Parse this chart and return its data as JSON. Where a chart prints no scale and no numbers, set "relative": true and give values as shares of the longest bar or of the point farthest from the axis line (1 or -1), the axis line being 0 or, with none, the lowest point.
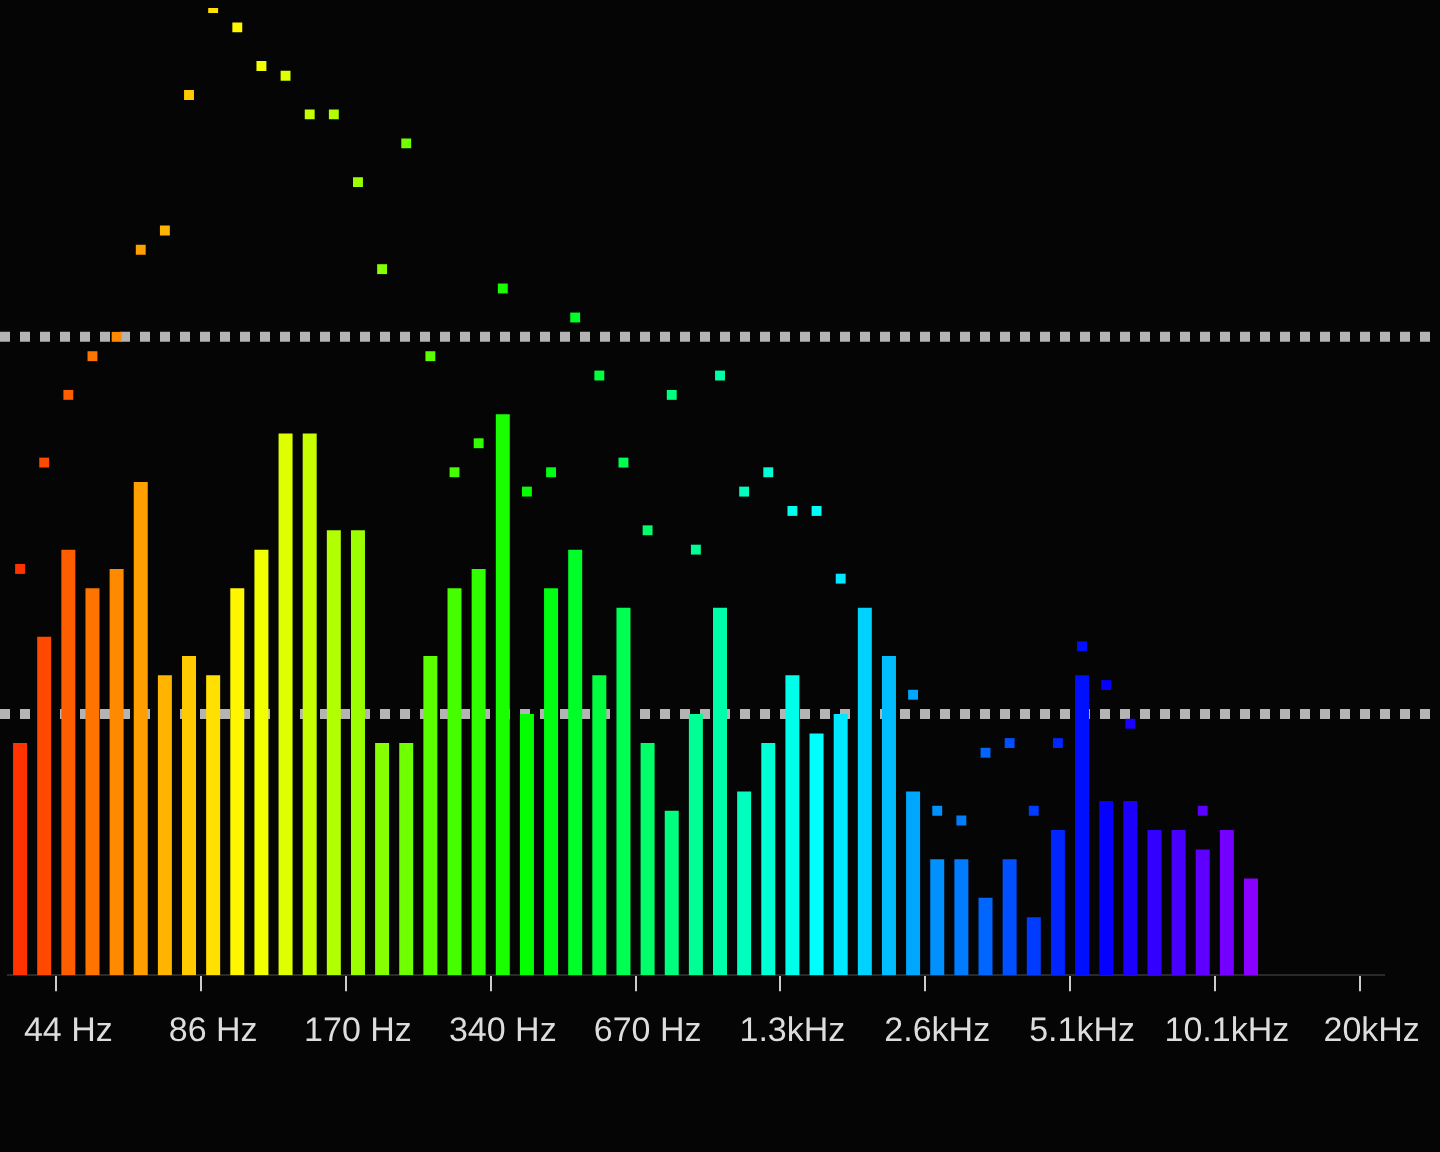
{
  "chart_data": {
    "type": "bar",
    "relative": true,
    "marker": "square",
    "categories": [
      null,
      null,
      "44 Hz",
      null,
      null,
      null,
      null,
      null,
      "86 Hz",
      null,
      null,
      null,
      null,
      null,
      "170 Hz",
      null,
      null,
      null,
      null,
      null,
      "340 Hz",
      null,
      null,
      null,
      null,
      null,
      "670 Hz",
      null,
      null,
      null,
      null,
      null,
      "1.3kHz",
      null,
      null,
      null,
      null,
      null,
      "2.6kHz",
      null,
      null,
      null,
      null,
      null,
      "5.1kHz",
      null,
      null,
      null,
      null,
      null,
      "10.1kHz",
      null,
      null,
      null,
      null,
      null,
      "20kHz"
    ],
    "series": [
      {
        "colors": [
          "#ff3300",
          "#ff4900",
          "#ff5e00",
          "#ff7400",
          "#ff8a00",
          "#ff9f00",
          "#ffb500",
          "#ffcb00",
          "#ffe000",
          "#fff600",
          "#f2ff00",
          "#ddff00",
          "#c7ff00",
          "#b1ff00",
          "#9cff00",
          "#86ff00",
          "#70ff00",
          "#5bff00",
          "#45ff00",
          "#2fff00",
          "#1aff00",
          "#04ff00",
          "#00ff12",
          "#00ff28",
          "#00ff3d",
          "#00ff53",
          "#00ff69",
          "#00ff7e",
          "#00ff94",
          "#00ffaa",
          "#00ffbf",
          "#00ffd5",
          "#00ffeb",
          "#00feff",
          "#00e8ff",
          "#00d2ff",
          "#00bdff",
          "#00a7ff",
          "#0091ff",
          "#007cff",
          "#0066ff",
          "#0050ff",
          "#003bff",
          "#0025ff",
          "#000fff",
          "#0600ff",
          "#1c00ff",
          "#3200ff",
          "#4700ff",
          "#5d00ff",
          "#7300ff",
          "#8800ff",
          null,
          null,
          null,
          null,
          null
        ],
        "values": [
          0.24,
          0.35,
          0.44,
          0.4,
          0.42,
          0.51,
          0.31,
          0.33,
          0.31,
          0.4,
          0.44,
          0.56,
          0.56,
          0.46,
          0.46,
          0.24,
          0.24,
          0.33,
          0.4,
          0.42,
          0.58,
          0.27,
          0.4,
          0.44,
          0.31,
          0.38,
          0.24,
          0.17,
          0.27,
          0.38,
          0.19,
          0.24,
          0.31,
          0.25,
          0.27,
          0.38,
          0.33,
          0.19,
          0.12,
          0.12,
          0.08,
          0.12,
          0.06,
          0.15,
          0.31,
          0.18,
          0.18,
          0.15,
          0.15,
          0.13,
          0.15,
          0.1,
          null,
          null,
          null,
          null,
          null
        ]
      },
      {
        "type": "scatter",
        "colors": [
          "#ff3300",
          "#ff4900",
          "#ff5e00",
          "#ff7400",
          "#ff8a00",
          "#ff9f00",
          "#ffb500",
          "#ffcb00",
          "#ffe000",
          "#fff600",
          "#f2ff00",
          "#ddff00",
          "#c7ff00",
          "#b1ff00",
          "#9cff00",
          "#86ff00",
          "#70ff00",
          "#5bff00",
          "#45ff00",
          "#2fff00",
          "#1aff00",
          "#04ff00",
          "#00ff12",
          "#00ff28",
          "#00ff3d",
          "#00ff53",
          "#00ff69",
          "#00ff7e",
          "#00ff94",
          "#00ffaa",
          "#00ffbf",
          "#00ffd5",
          "#00ffeb",
          "#00feff",
          "#00e8ff",
          "#00d2ff",
          "#00bdff",
          "#00a7ff",
          "#0091ff",
          "#007cff",
          "#0066ff",
          "#0050ff",
          "#003bff",
          "#0025ff",
          "#000fff",
          "#0600ff",
          "#1c00ff",
          "#3200ff",
          "#4700ff",
          "#5d00ff",
          "#7300ff",
          "#8800ff",
          null,
          null,
          null,
          null,
          null
        ],
        "values": [
          0.42,
          0.53,
          0.6,
          0.64,
          0.66,
          0.75,
          0.77,
          0.91,
          1.0,
          0.98,
          0.94,
          0.93,
          0.89,
          0.89,
          0.82,
          0.73,
          0.86,
          0.64,
          0.52,
          0.55,
          0.71,
          0.5,
          0.52,
          0.68,
          0.62,
          0.53,
          0.46,
          0.6,
          0.44,
          0.62,
          0.5,
          0.52,
          0.48,
          0.48,
          0.41,
          null,
          null,
          0.29,
          0.17,
          0.16,
          0.23,
          0.24,
          0.17,
          0.24,
          0.34,
          0.3,
          0.26,
          null,
          null,
          0.17,
          null,
          null,
          null,
          null,
          null,
          null,
          null
        ]
      }
    ],
    "ref_lines": [
      {
        "axis": "y",
        "value": 0.66,
        "color": "#b4b4b4",
        "line_style": "dotted"
      },
      {
        "axis": "y",
        "value": 0.27,
        "color": "#b4b4b4",
        "line_style": "dotted"
      }
    ]
  }
}
